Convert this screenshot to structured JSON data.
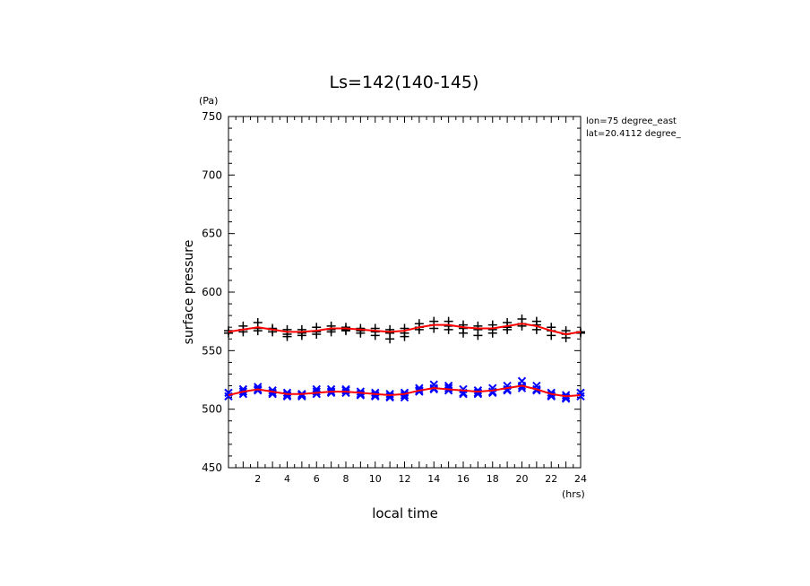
{
  "chart_data": {
    "type": "scatter",
    "title": "Ls=142(140-145)",
    "xlabel": "local time",
    "xunit": "(hrs)",
    "ylabel": "surface pressure",
    "yunit": "(Pa)",
    "annotations": [
      "lon=75 degree_east",
      "lat=20.4112 degree_"
    ],
    "xlim": [
      0,
      24
    ],
    "ylim": [
      450,
      750
    ],
    "xticks": [
      2,
      4,
      6,
      8,
      10,
      12,
      14,
      16,
      18,
      20,
      22,
      24
    ],
    "yticks": [
      450,
      500,
      550,
      600,
      650,
      700,
      750
    ],
    "grid": false,
    "colors": {
      "upper_markers": "#000000",
      "lower_markers": "#0000ff",
      "fit": "#ff0000"
    },
    "series": [
      {
        "marker": "plus",
        "color": "#000000",
        "x": [
          0,
          0,
          1,
          1,
          1,
          2,
          2,
          2,
          3,
          3,
          3,
          4,
          4,
          4,
          5,
          5,
          5,
          6,
          6,
          6,
          7,
          7,
          7,
          8,
          8,
          8,
          9,
          9,
          9,
          10,
          10,
          10,
          11,
          11,
          11,
          12,
          12,
          12,
          13,
          13,
          13,
          14,
          14,
          14,
          15,
          15,
          15,
          16,
          16,
          16,
          17,
          17,
          17,
          18,
          18,
          18,
          19,
          19,
          19,
          20,
          20,
          20,
          21,
          21,
          21,
          22,
          22,
          22,
          23,
          23,
          23,
          24,
          24
        ],
        "y": [
          565,
          567,
          568,
          571,
          566,
          569,
          574,
          567,
          566,
          569,
          568,
          564,
          568,
          562,
          565,
          568,
          563,
          566,
          570,
          564,
          568,
          571,
          566,
          567,
          570,
          568,
          567,
          569,
          565,
          566,
          569,
          563,
          565,
          568,
          560,
          565,
          569,
          562,
          570,
          573,
          568,
          572,
          575,
          569,
          571,
          575,
          568,
          569,
          572,
          565,
          568,
          571,
          563,
          568,
          572,
          565,
          570,
          574,
          568,
          573,
          577,
          571,
          572,
          575,
          568,
          567,
          570,
          563,
          564,
          567,
          561,
          566,
          565
        ]
      },
      {
        "marker": "cross",
        "color": "#0000ff",
        "x": [
          0,
          0,
          1,
          1,
          1,
          2,
          2,
          2,
          3,
          3,
          3,
          4,
          4,
          4,
          5,
          5,
          5,
          6,
          6,
          6,
          7,
          7,
          7,
          8,
          8,
          8,
          9,
          9,
          9,
          10,
          10,
          10,
          11,
          11,
          11,
          12,
          12,
          12,
          13,
          13,
          13,
          14,
          14,
          14,
          15,
          15,
          15,
          16,
          16,
          16,
          17,
          17,
          17,
          18,
          18,
          18,
          19,
          19,
          19,
          20,
          20,
          20,
          21,
          21,
          21,
          22,
          22,
          22,
          23,
          23,
          23,
          24,
          24
        ],
        "y": [
          511,
          514,
          513,
          517,
          515,
          516,
          519,
          517,
          514,
          516,
          513,
          511,
          514,
          512,
          511,
          513,
          512,
          513,
          517,
          515,
          514,
          517,
          515,
          516,
          517,
          514,
          513,
          515,
          512,
          512,
          514,
          511,
          511,
          513,
          510,
          510,
          514,
          512,
          515,
          518,
          516,
          517,
          521,
          518,
          516,
          520,
          518,
          514,
          517,
          513,
          513,
          516,
          514,
          514,
          518,
          515,
          516,
          520,
          517,
          518,
          524,
          520,
          517,
          520,
          516,
          512,
          514,
          511,
          509,
          512,
          510,
          511,
          514
        ]
      },
      {
        "name": "fit-upper",
        "marker": "line",
        "color": "#ff0000",
        "x": [
          0,
          1,
          2,
          3,
          4,
          5,
          6,
          7,
          8,
          9,
          10,
          11,
          12,
          13,
          14,
          15,
          16,
          17,
          18,
          19,
          20,
          21,
          22,
          23,
          24
        ],
        "y": [
          566,
          568,
          570,
          568,
          566,
          566,
          567,
          569,
          569,
          568,
          567,
          566,
          567,
          570,
          572,
          572,
          570,
          569,
          569,
          571,
          573,
          571,
          567,
          564,
          566
        ]
      },
      {
        "name": "fit-lower",
        "marker": "line",
        "color": "#ff0000",
        "x": [
          0,
          1,
          2,
          3,
          4,
          5,
          6,
          7,
          8,
          9,
          10,
          11,
          12,
          13,
          14,
          15,
          16,
          17,
          18,
          19,
          20,
          21,
          22,
          23,
          24
        ],
        "y": [
          512,
          515,
          517,
          515,
          513,
          513,
          514,
          515,
          515,
          514,
          513,
          512,
          513,
          516,
          518,
          517,
          516,
          515,
          516,
          518,
          520,
          517,
          513,
          511,
          512
        ]
      }
    ]
  }
}
